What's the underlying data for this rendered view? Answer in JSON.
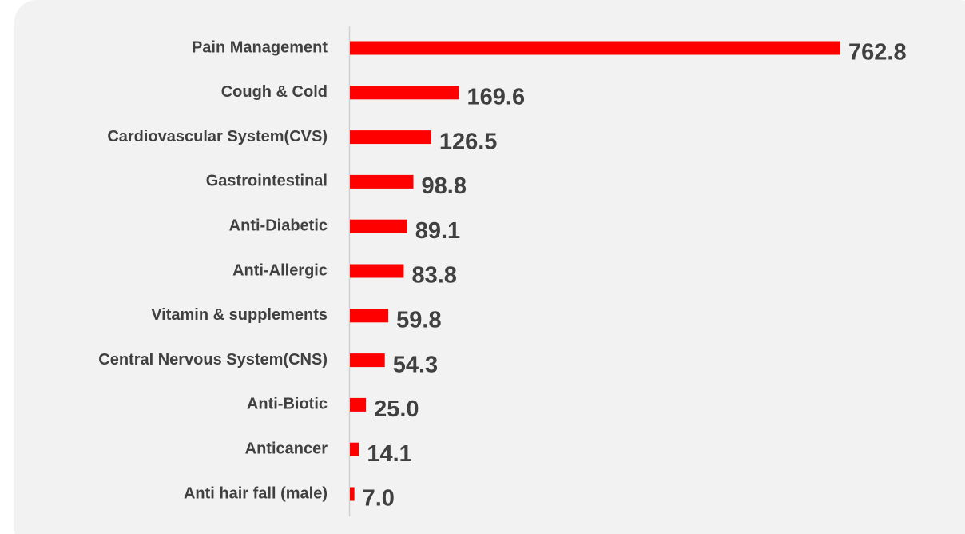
{
  "chart_data": {
    "type": "barh",
    "categories": [
      "Pain Management",
      "Cough & Cold",
      "Cardiovascular System(CVS)",
      "Gastrointestinal",
      "Anti-Diabetic",
      "Anti-Allergic",
      "Vitamin & supplements",
      "Central Nervous System(CNS)",
      "Anti-Biotic",
      "Anticancer",
      "Anti hair fall (male)"
    ],
    "values": [
      762.8,
      169.6,
      126.5,
      98.8,
      89.1,
      83.8,
      59.8,
      54.3,
      25.0,
      14.1,
      7.0
    ],
    "value_labels": [
      "762.8",
      "169.6",
      "126.5",
      "98.8",
      "89.1",
      "83.8",
      "59.8",
      "54.3",
      "25.0",
      "14.1",
      "7.0"
    ],
    "color": "#ff0000"
  }
}
